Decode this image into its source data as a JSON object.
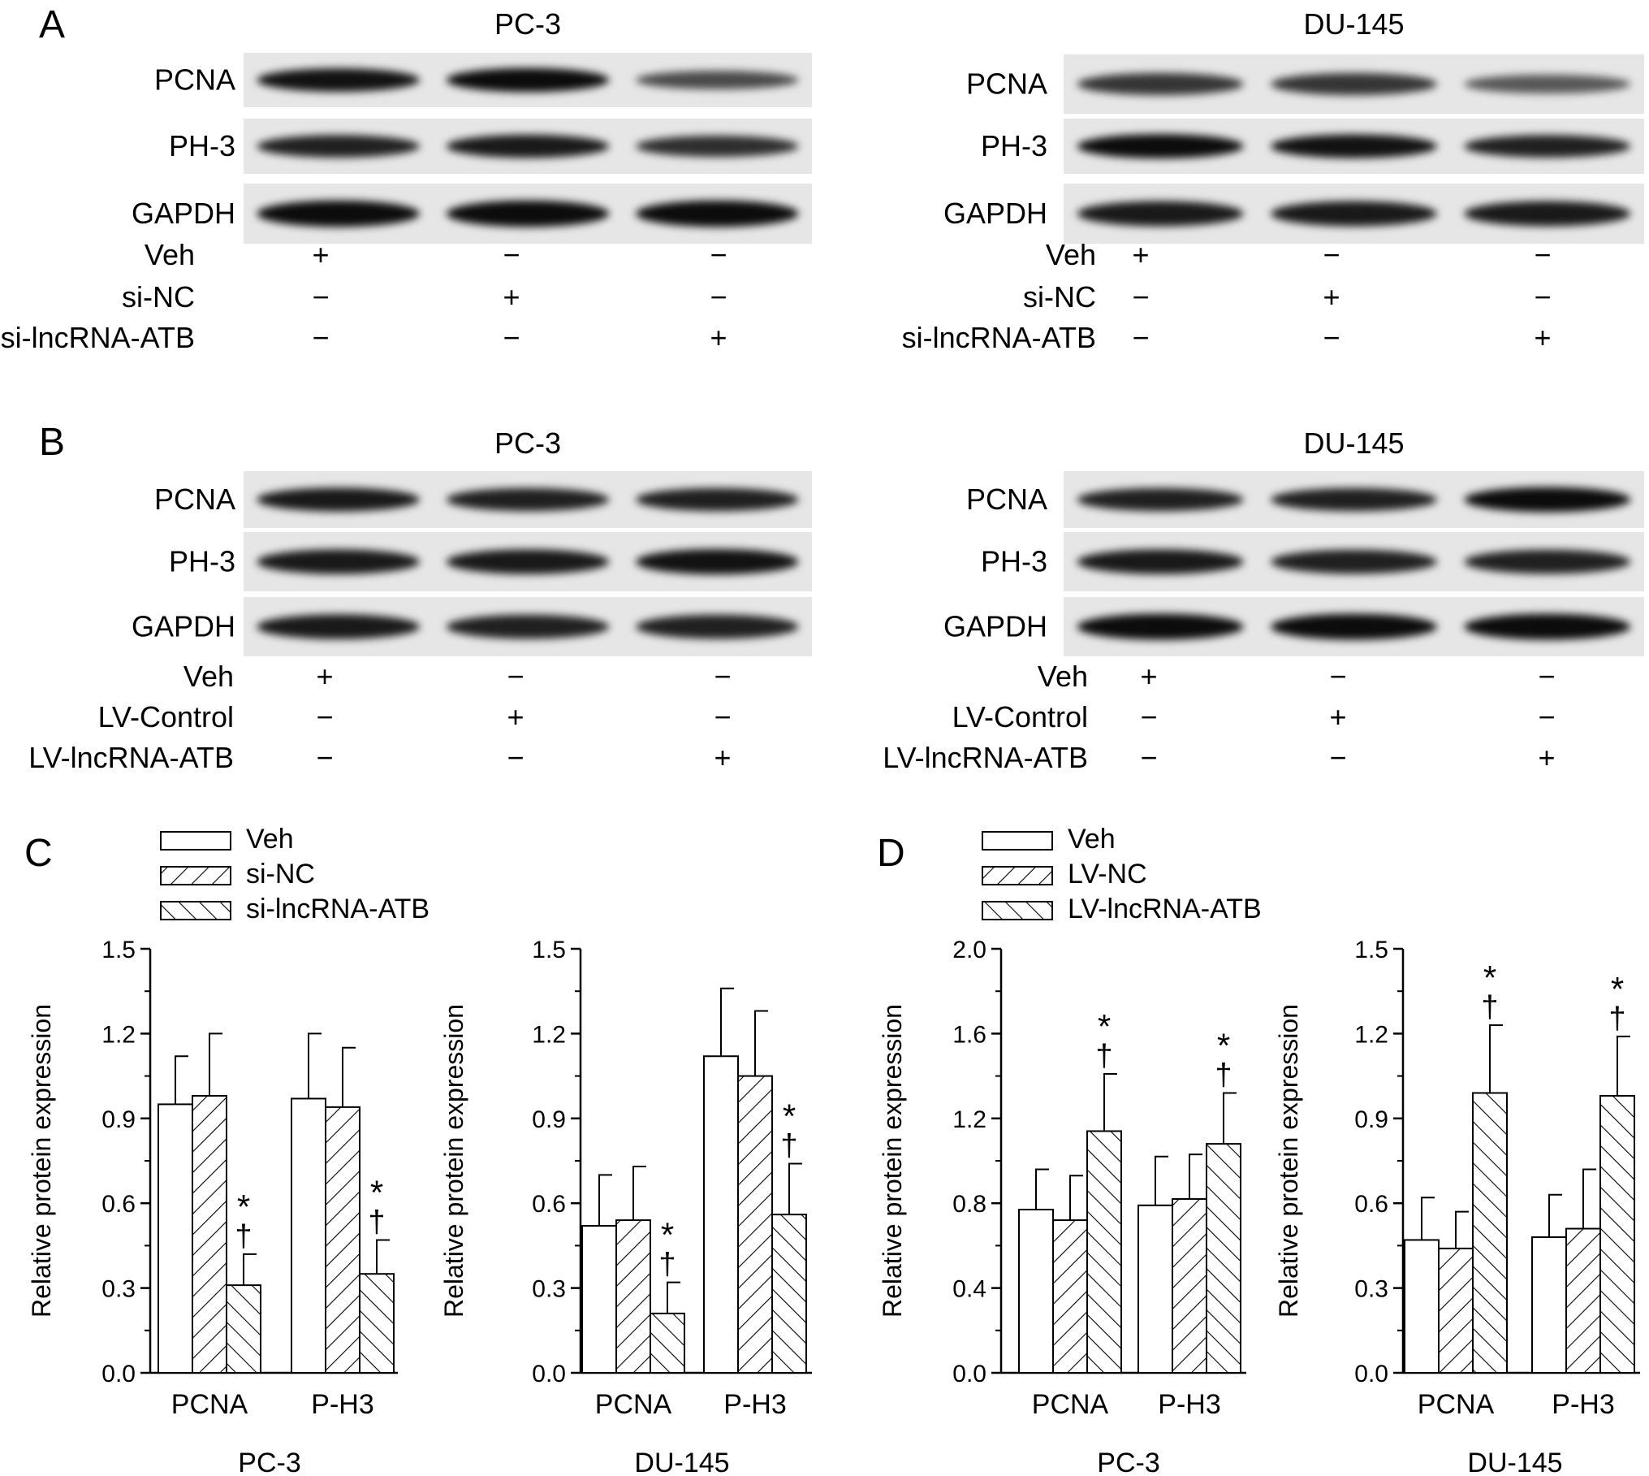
{
  "panel_labels": {
    "A": "A",
    "B": "B",
    "C": "C",
    "D": "D"
  },
  "blots": [
    {
      "id": "A-PC3",
      "title": "PC-3",
      "proteins": [
        "PCNA",
        "PH-3",
        "GAPDH"
      ],
      "conditions": [
        "Veh",
        "si-NC",
        "si-lncRNA-ATB"
      ],
      "band_intensity": [
        [
          0.95,
          1.0,
          0.55
        ],
        [
          0.85,
          0.9,
          0.75
        ],
        [
          1.0,
          1.0,
          1.0
        ]
      ],
      "signs": [
        [
          "+",
          "−",
          "−"
        ],
        [
          "−",
          "+",
          "−"
        ],
        [
          "−",
          "−",
          "+"
        ]
      ]
    },
    {
      "id": "A-DU145",
      "title": "DU-145",
      "proteins": [
        "PCNA",
        "PH-3",
        "GAPDH"
      ],
      "conditions": [
        "Veh",
        "si-NC",
        "si-lncRNA-ATB"
      ],
      "band_intensity": [
        [
          0.7,
          0.7,
          0.45
        ],
        [
          1.0,
          0.95,
          0.85
        ],
        [
          0.9,
          0.9,
          0.9
        ]
      ],
      "signs": [
        [
          "+",
          "−",
          "−"
        ],
        [
          "−",
          "+",
          "−"
        ],
        [
          "−",
          "−",
          "+"
        ]
      ]
    },
    {
      "id": "B-PC3",
      "title": "PC-3",
      "proteins": [
        "PCNA",
        "PH-3",
        "GAPDH"
      ],
      "conditions": [
        "Veh",
        "LV-Control",
        "LV-lncRNA-ATB"
      ],
      "band_intensity": [
        [
          0.9,
          0.85,
          0.85
        ],
        [
          0.9,
          0.9,
          0.95
        ],
        [
          0.9,
          0.85,
          0.85
        ]
      ],
      "signs": [
        [
          "+",
          "−",
          "−"
        ],
        [
          "−",
          "+",
          "−"
        ],
        [
          "−",
          "−",
          "+"
        ]
      ]
    },
    {
      "id": "B-DU145",
      "title": "DU-145",
      "proteins": [
        "PCNA",
        "PH-3",
        "GAPDH"
      ],
      "conditions": [
        "Veh",
        "LV-Control",
        "LV-lncRNA-ATB"
      ],
      "band_intensity": [
        [
          0.85,
          0.85,
          1.0
        ],
        [
          0.9,
          0.85,
          0.85
        ],
        [
          1.0,
          1.0,
          1.0
        ]
      ],
      "signs": [
        [
          "+",
          "−",
          "−"
        ],
        [
          "−",
          "+",
          "−"
        ],
        [
          "−",
          "−",
          "+"
        ]
      ]
    }
  ],
  "legends": {
    "C": [
      "Veh",
      "si-NC",
      "si-lncRNA-ATB"
    ],
    "D": [
      "Veh",
      "LV-NC",
      "LV-lncRNA-ATB"
    ]
  },
  "chart_data": [
    {
      "id": "C-PC3",
      "type": "bar",
      "title": "PC-3",
      "ylabel": "Relative protein expression",
      "categories": [
        "PCNA",
        "P-H3"
      ],
      "ylim": [
        0,
        1.5
      ],
      "yticks": [
        "0.0",
        "0.3",
        "0.6",
        "0.9",
        "1.2",
        "1.5"
      ],
      "series": [
        {
          "name": "Veh",
          "values": [
            0.95,
            0.97
          ],
          "errors": [
            0.17,
            0.23
          ]
        },
        {
          "name": "si-NC",
          "values": [
            0.98,
            0.94
          ],
          "errors": [
            0.22,
            0.21
          ]
        },
        {
          "name": "si-lncRNA-ATB",
          "values": [
            0.31,
            0.35
          ],
          "errors": [
            0.11,
            0.12
          ]
        }
      ],
      "significance": [
        [
          "",
          ""
        ],
        [
          "",
          ""
        ],
        [
          "*\n†",
          "*\n†"
        ]
      ]
    },
    {
      "id": "C-DU145",
      "type": "bar",
      "title": "DU-145",
      "ylabel": "Relative protein expression",
      "categories": [
        "PCNA",
        "P-H3"
      ],
      "ylim": [
        0,
        1.5
      ],
      "yticks": [
        "0.0",
        "0.3",
        "0.6",
        "0.9",
        "1.2",
        "1.5"
      ],
      "series": [
        {
          "name": "Veh",
          "values": [
            0.52,
            1.12
          ],
          "errors": [
            0.18,
            0.24
          ]
        },
        {
          "name": "si-NC",
          "values": [
            0.54,
            1.05
          ],
          "errors": [
            0.19,
            0.23
          ]
        },
        {
          "name": "si-lncRNA-ATB",
          "values": [
            0.21,
            0.56
          ],
          "errors": [
            0.11,
            0.18
          ]
        }
      ],
      "significance": [
        [
          "",
          ""
        ],
        [
          "",
          ""
        ],
        [
          "*\n†",
          "*\n†"
        ]
      ]
    },
    {
      "id": "D-PC3",
      "type": "bar",
      "title": "PC-3",
      "ylabel": "Relative protein expression",
      "categories": [
        "PCNA",
        "P-H3"
      ],
      "ylim": [
        0,
        2.0
      ],
      "yticks": [
        "0.0",
        "0.4",
        "0.8",
        "1.2",
        "1.6",
        "2.0"
      ],
      "series": [
        {
          "name": "Veh",
          "values": [
            0.77,
            0.79
          ],
          "errors": [
            0.19,
            0.23
          ]
        },
        {
          "name": "LV-NC",
          "values": [
            0.72,
            0.82
          ],
          "errors": [
            0.21,
            0.21
          ]
        },
        {
          "name": "LV-lncRNA-ATB",
          "values": [
            1.14,
            1.08
          ],
          "errors": [
            0.27,
            0.24
          ]
        }
      ],
      "significance": [
        [
          "",
          ""
        ],
        [
          "",
          ""
        ],
        [
          "*\n†",
          "*\n†"
        ]
      ]
    },
    {
      "id": "D-DU145",
      "type": "bar",
      "title": "DU-145",
      "ylabel": "Relative protein expression",
      "categories": [
        "PCNA",
        "P-H3"
      ],
      "ylim": [
        0,
        1.5
      ],
      "yticks": [
        "0.0",
        "0.3",
        "0.6",
        "0.9",
        "1.2",
        "1.5"
      ],
      "series": [
        {
          "name": "Veh",
          "values": [
            0.47,
            0.48
          ],
          "errors": [
            0.15,
            0.15
          ]
        },
        {
          "name": "LV-NC",
          "values": [
            0.44,
            0.51
          ],
          "errors": [
            0.13,
            0.21
          ]
        },
        {
          "name": "LV-lncRNA-ATB",
          "values": [
            0.99,
            0.98
          ],
          "errors": [
            0.24,
            0.21
          ]
        }
      ],
      "significance": [
        [
          "",
          ""
        ],
        [
          "",
          ""
        ],
        [
          "*\n†",
          "*\n†"
        ]
      ]
    }
  ]
}
